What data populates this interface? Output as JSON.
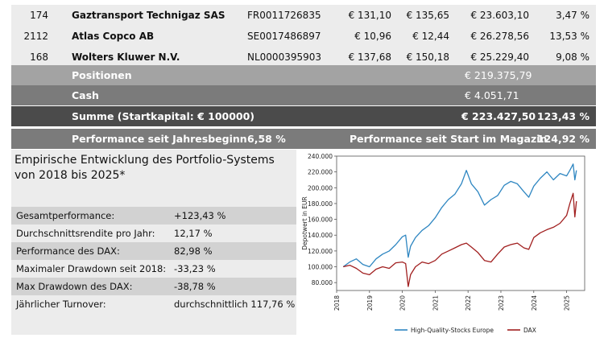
{
  "holdings": [
    {
      "qty": "174",
      "name": "Gaztransport Technigaz SAS",
      "isin": "FR0011726835",
      "price_buy": "€ 131,10",
      "price_now": "€ 135,65",
      "value": "€ 23.603,10",
      "weight": "3,47 %"
    },
    {
      "qty": "2112",
      "name": "Atlas Copco AB",
      "isin": "SE0017486897",
      "price_buy": "€ 10,96",
      "price_now": "€ 12,44",
      "value": "€ 26.278,56",
      "weight": "13,53 %"
    },
    {
      "qty": "168",
      "name": "Wolters Kluwer N.V.",
      "isin": "NL0000395903",
      "price_buy": "€ 137,68",
      "price_now": "€ 150,18",
      "value": "€ 25.229,40",
      "weight": "9,08 %"
    }
  ],
  "summary": {
    "positions_label": "Positionen",
    "positions_value": "€ 219.375,79",
    "cash_label": "Cash",
    "cash_value": "€ 4.051,71",
    "total_label": "Summe (Startkapital: € 100000)",
    "total_value": "€ 223.427,50",
    "total_pct": "123,43 %",
    "ytd_label": "Performance seit Jahresbeginn",
    "ytd_value": "6,58 %",
    "since_start_label": "Performance seit Start im Magazin",
    "since_start_value": "124,92 %"
  },
  "stats": {
    "title": "Empirische Entwicklung des Portfolio-Systems von 2018 bis 2025*",
    "rows": [
      {
        "label": "Gesamtperformance:",
        "value": "+123,43 %"
      },
      {
        "label": "Durchschnittsrendite pro Jahr:",
        "value": "12,17 %"
      },
      {
        "label": "Performance des DAX:",
        "value": "82,98 %"
      },
      {
        "label": "Maximaler Drawdown seit 2018:",
        "value": "-33,23 %"
      },
      {
        "label": "Max Drawdown des DAX:",
        "value": "-38,78 %"
      },
      {
        "label": "Jährlicher Turnover:",
        "value": "durchschnittlich 117,76 %"
      }
    ]
  },
  "colors": {
    "row_light": "#ececec",
    "row_mid": "#a3a3a3",
    "row_dark": "#7b7b7b",
    "row_darkest": "#4b4b4b",
    "stat_stripe": "#d2d2d2",
    "series_portfolio": "#2e86c1",
    "series_dax": "#a11f1f"
  },
  "chart_data": {
    "type": "line",
    "ylabel": "Depotwert in EUR",
    "ylim": [
      70000,
      240000
    ],
    "xlim": [
      2018.0,
      2025.55
    ],
    "yticks": [
      80000,
      100000,
      120000,
      140000,
      160000,
      180000,
      200000,
      220000,
      240000
    ],
    "ytick_labels": [
      "80.000",
      "100.000",
      "120.000",
      "140.000",
      "160.000",
      "180.000",
      "200.000",
      "220.000",
      "240.000"
    ],
    "xtick_labels": [
      "2018",
      "2019",
      "2020",
      "2021",
      "2022",
      "2023",
      "2024",
      "2025"
    ],
    "grid": false,
    "legend": "bottom",
    "series": [
      {
        "name": "High-Quality-Stocks Europe",
        "color": "#2e86c1",
        "x": [
          2018.2,
          2018.4,
          2018.6,
          2018.8,
          2019.0,
          2019.2,
          2019.4,
          2019.6,
          2019.8,
          2020.0,
          2020.1,
          2020.18,
          2020.25,
          2020.4,
          2020.6,
          2020.8,
          2021.0,
          2021.2,
          2021.4,
          2021.6,
          2021.8,
          2021.95,
          2022.1,
          2022.3,
          2022.5,
          2022.7,
          2022.9,
          2023.1,
          2023.3,
          2023.5,
          2023.7,
          2023.85,
          2024.0,
          2024.2,
          2024.4,
          2024.6,
          2024.8,
          2025.0,
          2025.1,
          2025.2,
          2025.25,
          2025.3
        ],
        "values": [
          100000,
          106000,
          110000,
          103000,
          100000,
          110000,
          116000,
          120000,
          128000,
          138000,
          140000,
          112000,
          126000,
          137000,
          146000,
          152000,
          162000,
          175000,
          185000,
          192000,
          205000,
          222000,
          205000,
          195000,
          178000,
          185000,
          190000,
          203000,
          208000,
          205000,
          195000,
          188000,
          202000,
          212000,
          220000,
          210000,
          218000,
          215000,
          222000,
          230000,
          210000,
          222000
        ]
      },
      {
        "name": "DAX",
        "color": "#a11f1f",
        "x": [
          2018.2,
          2018.4,
          2018.6,
          2018.8,
          2019.0,
          2019.2,
          2019.4,
          2019.6,
          2019.8,
          2020.0,
          2020.1,
          2020.18,
          2020.25,
          2020.4,
          2020.6,
          2020.8,
          2021.0,
          2021.2,
          2021.4,
          2021.6,
          2021.8,
          2021.95,
          2022.1,
          2022.3,
          2022.5,
          2022.7,
          2022.9,
          2023.1,
          2023.3,
          2023.5,
          2023.7,
          2023.85,
          2024.0,
          2024.2,
          2024.4,
          2024.6,
          2024.8,
          2025.0,
          2025.1,
          2025.2,
          2025.25,
          2025.3
        ],
        "values": [
          100000,
          102000,
          98000,
          92000,
          90000,
          97000,
          100000,
          98000,
          105000,
          106000,
          104000,
          75000,
          90000,
          100000,
          106000,
          104000,
          108000,
          116000,
          120000,
          124000,
          128000,
          130000,
          125000,
          118000,
          108000,
          106000,
          116000,
          125000,
          128000,
          130000,
          124000,
          122000,
          137000,
          143000,
          147000,
          150000,
          155000,
          165000,
          180000,
          193000,
          163000,
          183000
        ]
      }
    ]
  }
}
